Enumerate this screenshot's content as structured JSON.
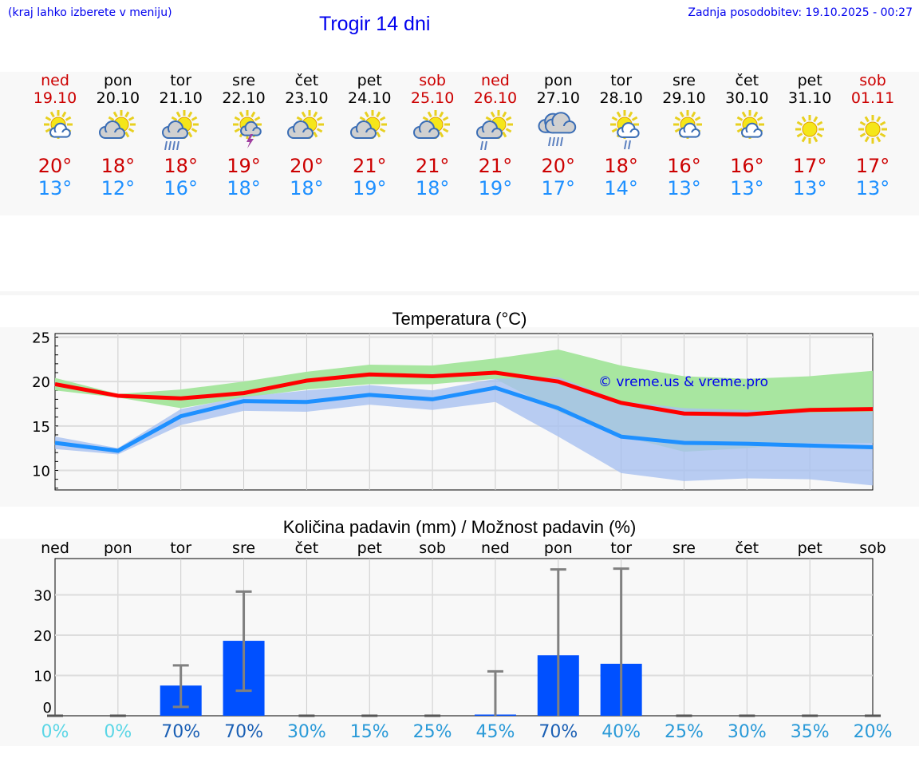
{
  "header": {
    "hint": "(kraj lahko izberete v meniju)",
    "title": "Trogir 14 dni",
    "updated": "Zadnja posodobitev: 19.10.2025 - 00:27"
  },
  "days": [
    {
      "name": "ned",
      "date": "19.10",
      "weekend": true,
      "icon": "sun-small-cloud",
      "max": "20°",
      "min": "13°"
    },
    {
      "name": "pon",
      "date": "20.10",
      "weekend": false,
      "icon": "partly-cloudy",
      "max": "18°",
      "min": "12°"
    },
    {
      "name": "tor",
      "date": "21.10",
      "weekend": false,
      "icon": "partly-cloudy-rain",
      "max": "18°",
      "min": "16°"
    },
    {
      "name": "sre",
      "date": "22.10",
      "weekend": false,
      "icon": "sun-thunderstorm",
      "max": "19°",
      "min": "18°"
    },
    {
      "name": "čet",
      "date": "23.10",
      "weekend": false,
      "icon": "partly-cloudy",
      "max": "20°",
      "min": "18°"
    },
    {
      "name": "pet",
      "date": "24.10",
      "weekend": false,
      "icon": "partly-cloudy",
      "max": "21°",
      "min": "19°"
    },
    {
      "name": "sob",
      "date": "25.10",
      "weekend": true,
      "icon": "partly-cloudy",
      "max": "21°",
      "min": "18°"
    },
    {
      "name": "ned",
      "date": "26.10",
      "weekend": true,
      "icon": "partly-cloudy-light-rain",
      "max": "21°",
      "min": "19°"
    },
    {
      "name": "pon",
      "date": "27.10",
      "weekend": false,
      "icon": "cloudy-rain",
      "max": "20°",
      "min": "17°"
    },
    {
      "name": "tor",
      "date": "28.10",
      "weekend": false,
      "icon": "sun-cloud-light-rain",
      "max": "18°",
      "min": "14°"
    },
    {
      "name": "sre",
      "date": "29.10",
      "weekend": false,
      "icon": "sun-small-cloud",
      "max": "16°",
      "min": "13°"
    },
    {
      "name": "čet",
      "date": "30.10",
      "weekend": false,
      "icon": "sun-small-cloud",
      "max": "16°",
      "min": "13°"
    },
    {
      "name": "pet",
      "date": "31.10",
      "weekend": false,
      "icon": "sun",
      "max": "17°",
      "min": "13°"
    },
    {
      "name": "sob",
      "date": "01.11",
      "weekend": true,
      "icon": "sun",
      "max": "17°",
      "min": "13°"
    }
  ],
  "colors": {
    "weekend": "#cc0000",
    "weekday": "#000000",
    "max": "#ff0000",
    "min": "#1e90ff",
    "max_band": "#a8e6a0",
    "min_band": "#a8c0f0",
    "bar": "#0050ff",
    "whisker": "#808080"
  },
  "chart_data": [
    {
      "type": "line",
      "title": "Temperatura (°C)",
      "ylim": [
        7.8,
        25.4
      ],
      "yticks": [
        10,
        15,
        20,
        25
      ],
      "watermark": "© vreme.us & vreme.pro",
      "series": [
        {
          "name": "max",
          "values": [
            19.7,
            18.4,
            18.1,
            18.7,
            20.1,
            20.8,
            20.6,
            21.0,
            20.0,
            17.6,
            16.4,
            16.3,
            16.8,
            16.9
          ],
          "band_upper": [
            20.4,
            18.6,
            19.1,
            20.0,
            21.1,
            21.9,
            21.8,
            22.6,
            23.6,
            21.8,
            20.6,
            20.3,
            20.6,
            21.2
          ],
          "band_lower": [
            19.0,
            18.2,
            17.0,
            18.2,
            19.1,
            19.7,
            19.7,
            20.3,
            16.6,
            13.9,
            12.1,
            12.5,
            13.1,
            13.1
          ]
        },
        {
          "name": "min",
          "values": [
            13.1,
            12.2,
            16.1,
            17.8,
            17.7,
            18.5,
            18.0,
            19.3,
            17.0,
            13.8,
            13.1,
            13.0,
            12.8,
            12.6
          ],
          "band_upper": [
            13.8,
            12.5,
            16.9,
            18.3,
            19.0,
            19.6,
            19.0,
            20.3,
            20.5,
            17.8,
            17.0,
            16.8,
            16.5,
            16.6
          ],
          "band_lower": [
            12.4,
            11.8,
            15.1,
            16.7,
            16.6,
            17.4,
            16.8,
            17.7,
            13.8,
            9.7,
            8.8,
            9.1,
            9.0,
            8.3
          ]
        }
      ]
    },
    {
      "type": "bar",
      "title": "Količina padavin (mm) / Možnost padavin (%)",
      "ylim": [
        0,
        39
      ],
      "yticks": [
        0,
        10,
        20,
        30
      ],
      "categories": [
        "ned",
        "pon",
        "tor",
        "sre",
        "čet",
        "pet",
        "sob",
        "ned",
        "pon",
        "tor",
        "sre",
        "čet",
        "pet",
        "sob"
      ],
      "values": [
        0,
        0,
        7.5,
        18.6,
        0,
        0,
        0,
        0.3,
        15.0,
        12.9,
        0,
        0,
        0,
        0
      ],
      "range_low": [
        0,
        0,
        2.2,
        6.2,
        0,
        0,
        0,
        0,
        0,
        0,
        0,
        0,
        0,
        0
      ],
      "range_high": [
        0,
        0,
        12.5,
        30.8,
        0,
        0,
        0,
        11.0,
        36.3,
        36.5,
        0,
        0,
        0,
        0
      ],
      "probability": [
        "0%",
        "0%",
        "70%",
        "70%",
        "30%",
        "15%",
        "25%",
        "45%",
        "70%",
        "40%",
        "25%",
        "30%",
        "35%",
        "20%"
      ]
    }
  ]
}
